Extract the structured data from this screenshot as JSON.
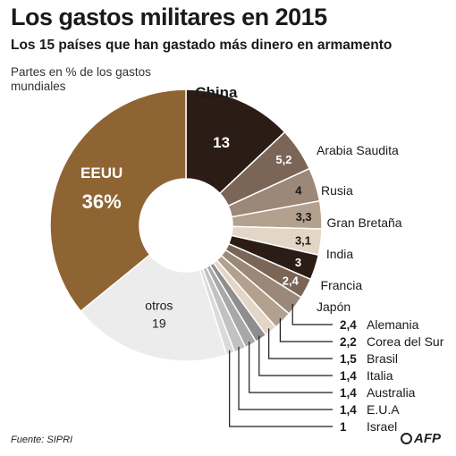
{
  "header": {
    "title": "Los gastos militares en 2015",
    "subtitle": "Los 15 países que han gastado más dinero en armamento",
    "unit_note": "Partes en % de los gastos mundiales"
  },
  "footer": {
    "source": "Fuente: SIPRI",
    "logo": "AFP"
  },
  "chart_data": {
    "type": "pie",
    "donut": true,
    "title": "Los gastos militares en 2015",
    "unit": "Partes en % de los gastos mundiales",
    "slices": [
      {
        "label": "China",
        "value": 13,
        "value_text": "13",
        "color": "#2b1d15"
      },
      {
        "label": "Arabia Saudita",
        "value": 5.2,
        "value_text": "5,2",
        "color": "#7a6557"
      },
      {
        "label": "Rusia",
        "value": 4,
        "value_text": "4",
        "color": "#9b8878"
      },
      {
        "label": "Gran Bretaña",
        "value": 3.3,
        "value_text": "3,3",
        "color": "#b3a190"
      },
      {
        "label": "India",
        "value": 3.1,
        "value_text": "3,1",
        "color": "#e3d6c6"
      },
      {
        "label": "Francia",
        "value": 3,
        "value_text": "3",
        "color": "#2b1d15"
      },
      {
        "label": "Japón",
        "value": 2.4,
        "value_text": "2,4",
        "color": "#7a6557"
      },
      {
        "label": "Alemania",
        "value": 2.4,
        "value_text": "2,4",
        "color": "#9b8878"
      },
      {
        "label": "Corea del Sur",
        "value": 2.2,
        "value_text": "2,2",
        "color": "#b3a190"
      },
      {
        "label": "Brasil",
        "value": 1.5,
        "value_text": "1,5",
        "color": "#e3d6c6"
      },
      {
        "label": "Italia",
        "value": 1.4,
        "value_text": "1,4",
        "color": "#8e8e8e"
      },
      {
        "label": "Australia",
        "value": 1.4,
        "value_text": "1,4",
        "color": "#a8a8a8"
      },
      {
        "label": "E.U.A",
        "value": 1.4,
        "value_text": "1,4",
        "color": "#c2c2c2"
      },
      {
        "label": "Israel",
        "value": 1,
        "value_text": "1",
        "color": "#dadada"
      },
      {
        "label": "otros",
        "value": 19,
        "value_text": "19",
        "color": "#ececec"
      },
      {
        "label": "EEUU",
        "value": 36,
        "value_text": "36%",
        "color": "#8f6433"
      }
    ]
  }
}
